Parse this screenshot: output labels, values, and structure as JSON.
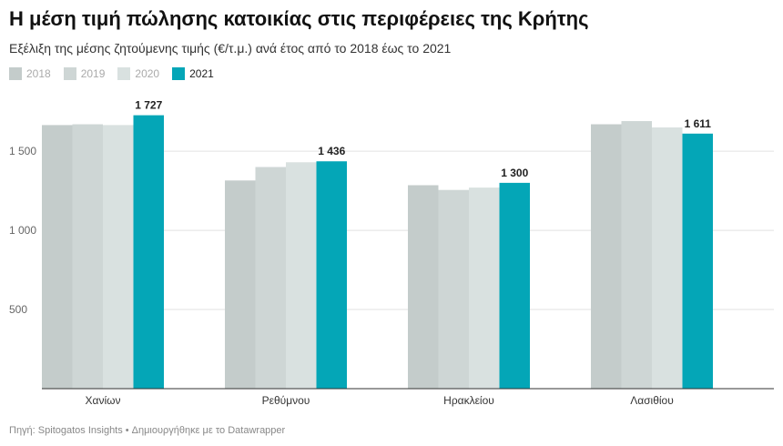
{
  "title": "Η μέση τιμή πώλησης κατοικίας στις περιφέρειες της Κρήτης",
  "subtitle": "Εξέλιξη της μέσης ζητούμενης τιμής (€/τ.μ.) ανά έτος από το 2018 έως το 2021",
  "source": {
    "text": "Πηγή: Spitogatos Insights",
    "separator": "•",
    "credit": "Δημιουργήθηκε με το Datawrapper"
  },
  "chart_data": {
    "type": "bar",
    "categories": [
      "Χανίων",
      "Ρεθύμνου",
      "Ηρακλείου",
      "Λασιθίου"
    ],
    "series": [
      {
        "name": "2018",
        "color": "#c4cccb",
        "values": [
          1665,
          1315,
          1285,
          1670
        ]
      },
      {
        "name": "2019",
        "color": "#ced6d5",
        "values": [
          1670,
          1400,
          1255,
          1690
        ]
      },
      {
        "name": "2020",
        "color": "#d9e1e0",
        "values": [
          1665,
          1430,
          1270,
          1650
        ]
      },
      {
        "name": "2021",
        "color": "#04a6b7",
        "values": [
          1727,
          1436,
          1300,
          1611
        ]
      }
    ],
    "data_labels": {
      "series": "2021",
      "values": [
        "1 727",
        "1 436",
        "1 300",
        "1 611"
      ]
    },
    "y_ticks": [
      500,
      1000,
      1500
    ],
    "y_tick_labels": [
      "500",
      "1 000",
      "1 500"
    ],
    "ylim": [
      0,
      1880
    ],
    "grid": true,
    "legend_position": "top-left",
    "active_legend": "2021"
  }
}
